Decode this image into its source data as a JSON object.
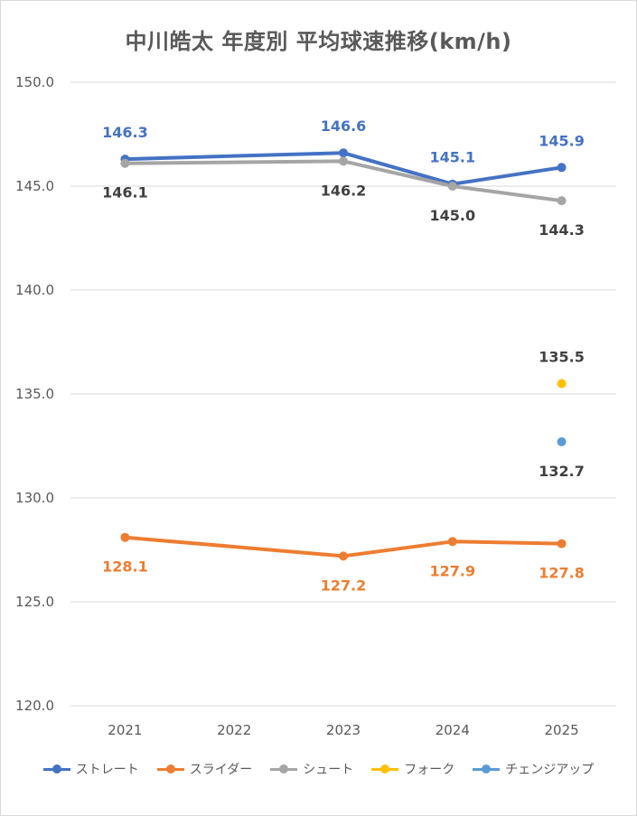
{
  "chart_data": {
    "type": "line",
    "title": "中川皓太 年度別 平均球速推移(km/h)",
    "categories": [
      "2021",
      "2022",
      "2023",
      "2024",
      "2025"
    ],
    "ylim": [
      120.0,
      150.0
    ],
    "yticks": [
      "150.0",
      "145.0",
      "140.0",
      "135.0",
      "130.0",
      "125.0",
      "120.0"
    ],
    "grid": true,
    "legend_position": "bottom",
    "series": [
      {
        "name": "ストレート",
        "color": "#4472c4",
        "values": [
          146.3,
          null,
          146.6,
          145.1,
          145.9
        ],
        "labels": [
          "146.3",
          "",
          "146.6",
          "145.1",
          "145.9"
        ],
        "label_pos": "above"
      },
      {
        "name": "スライダー",
        "color": "#ed7d31",
        "values": [
          128.1,
          null,
          127.2,
          127.9,
          127.8
        ],
        "labels": [
          "128.1",
          "",
          "127.2",
          "127.9",
          "127.8"
        ],
        "label_pos": "below"
      },
      {
        "name": "シュート",
        "color": "#a5a5a5",
        "values": [
          146.1,
          null,
          146.2,
          145.0,
          144.3
        ],
        "labels": [
          "146.1",
          "",
          "146.2",
          "145.0",
          "144.3"
        ],
        "label_pos": "below"
      },
      {
        "name": "フォーク",
        "color": "#ffc000",
        "values": [
          null,
          null,
          null,
          null,
          135.5
        ],
        "labels": [
          "",
          "",
          "",
          "",
          "135.5"
        ],
        "label_pos": "above"
      },
      {
        "name": "チェンジアップ",
        "color": "#5b9bd5",
        "values": [
          null,
          null,
          null,
          null,
          132.7
        ],
        "labels": [
          "",
          "",
          "",
          "",
          "132.7"
        ],
        "label_pos": "below"
      }
    ]
  }
}
